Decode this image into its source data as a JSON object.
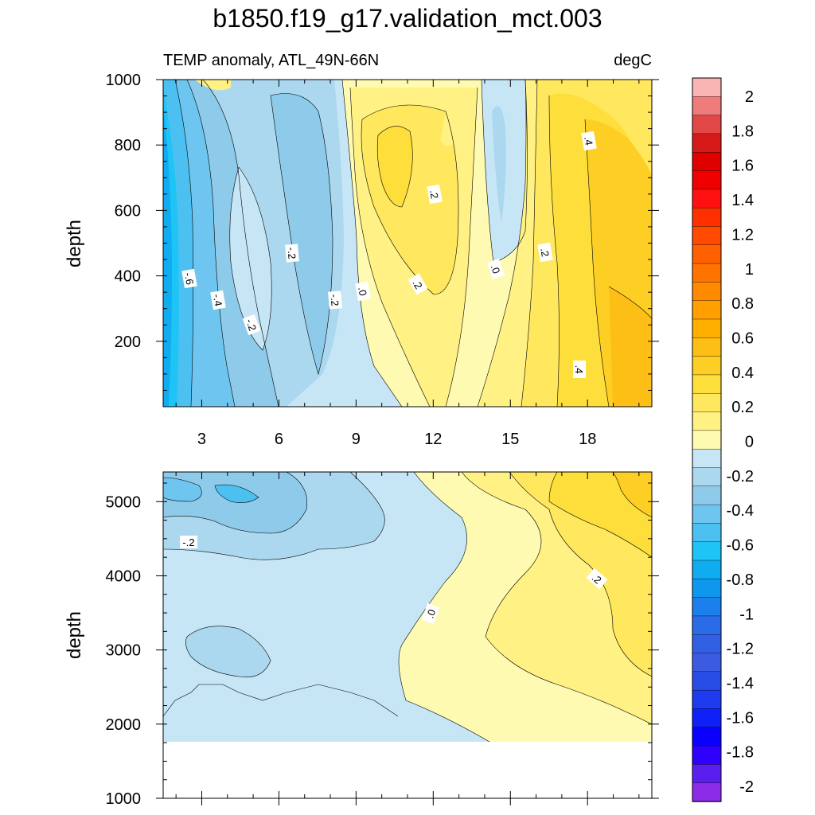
{
  "title": "b1850.f19_g17.validation_mct.003",
  "subtitle_left": "TEMP anomaly, ATL_49N-66N",
  "subtitle_right": "degC",
  "colorbar": {
    "labels": [
      "2",
      "1.8",
      "1.6",
      "1.4",
      "1.2",
      "1",
      "0.8",
      "0.6",
      "0.4",
      "0.2",
      "0",
      "-0.2",
      "-0.4",
      "-0.6",
      "-0.8",
      "-1",
      "-1.2",
      "-1.4",
      "-1.6",
      "-1.8",
      "-2"
    ],
    "colors": [
      "#f9b4b4",
      "#ef7b7b",
      "#e24848",
      "#d61a1a",
      "#e00000",
      "#f00000",
      "#ff1010",
      "#ff3000",
      "#ff4a00",
      "#ff6100",
      "#ff7400",
      "#ff8a00",
      "#ffa000",
      "#ffaf00",
      "#fdbf16",
      "#fdce24",
      "#fede3b",
      "#ffe85e",
      "#fff183",
      "#fffab1",
      "#c6e6f6",
      "#abd8ef",
      "#8ecae9",
      "#6ec6f0",
      "#4cc0f1",
      "#1ec4f6",
      "#10acf1",
      "#0f97ee",
      "#1b7fec",
      "#2a6ce8",
      "#3260e5",
      "#3b5ce0",
      "#284de7",
      "#1f3bf0",
      "#1020f8",
      "#0a00ff",
      "#3000ff",
      "#5a1fef",
      "#8c2ce8"
    ]
  },
  "chart_data": [
    {
      "type": "contour",
      "panel": "upper",
      "ylabel": "depth",
      "xticks": [
        "3",
        "6",
        "9",
        "12",
        "15",
        "18"
      ],
      "yticks": [
        "200",
        "400",
        "600",
        "800",
        "1000"
      ],
      "xlim": [
        1.5,
        20.5
      ],
      "ylim": [
        1000,
        0
      ],
      "contour_labels": [
        "-.6",
        "-.4",
        "-.2",
        "-.2",
        "-.2",
        ".0",
        ".2",
        ".2",
        ".2",
        ".0",
        ".4",
        ".4"
      ],
      "min_value": -0.6,
      "max_value": 0.5
    },
    {
      "type": "contour",
      "panel": "lower",
      "ylabel": "depth",
      "yticks": [
        "1000",
        "2000",
        "3000",
        "4000",
        "5000"
      ],
      "xlim": [
        1.5,
        20.5
      ],
      "ylim": [
        5400,
        1000
      ],
      "data_bottom_depth": 4620,
      "contour_labels": [
        "-.2",
        ".0",
        ".2"
      ],
      "min_value": -0.3,
      "max_value": 0.3
    }
  ]
}
